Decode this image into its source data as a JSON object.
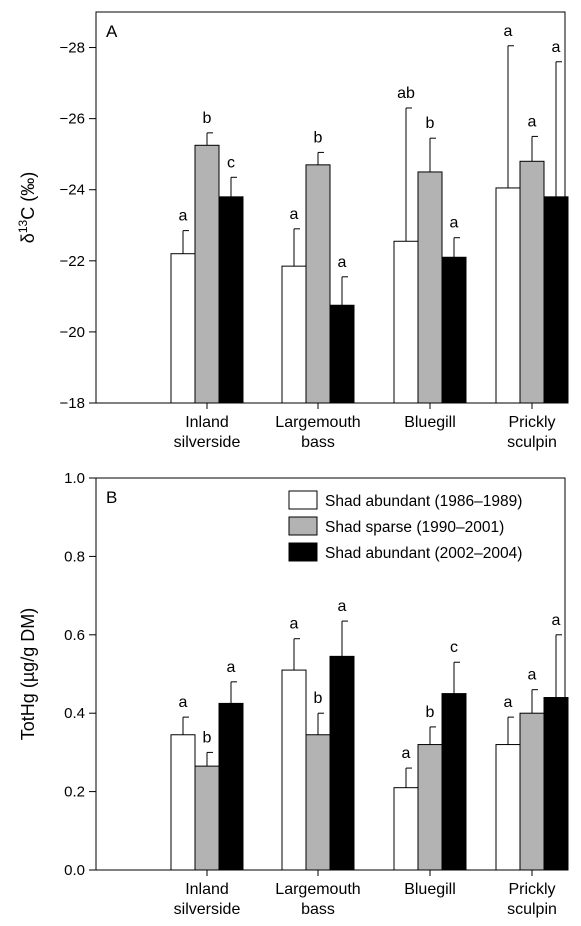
{
  "chart_data": [
    {
      "type": "bar",
      "panel_label": "A",
      "ylabel": "δ13C (‰)",
      "ylabel_parts": {
        "delta": "δ",
        "sup": "13",
        "rest": "C (‰)"
      },
      "ylim": [
        -18,
        -29
      ],
      "yaxis_inverted": true,
      "yticks": [
        -28,
        -26,
        -24,
        -22,
        -20,
        -18
      ],
      "ytick_labels": [
        "−28",
        "−26",
        "−24",
        "−22",
        "−20",
        "−18"
      ],
      "categories": [
        [
          "Inland",
          "silverside"
        ],
        [
          "Largemouth",
          "bass"
        ],
        [
          "Bluegill"
        ],
        [
          "Prickly",
          "sculpin"
        ]
      ],
      "series": [
        {
          "values": [
            -22.2,
            -21.85,
            -22.55,
            -24.05
          ],
          "errors": [
            0.65,
            1.05,
            3.75,
            4.0
          ],
          "letters": [
            "a",
            "a",
            "ab",
            "a"
          ]
        },
        {
          "values": [
            -25.25,
            -24.7,
            -24.5,
            -24.8
          ],
          "errors": [
            0.35,
            0.35,
            0.95,
            0.7
          ],
          "letters": [
            "b",
            "b",
            "b",
            "a"
          ]
        },
        {
          "values": [
            -23.8,
            -20.75,
            -22.1,
            -23.8
          ],
          "errors": [
            0.55,
            0.8,
            0.55,
            3.8
          ],
          "letters": [
            "c",
            "a",
            "a",
            "a"
          ]
        }
      ]
    },
    {
      "type": "bar",
      "panel_label": "B",
      "ylabel": "TotHg (µg/g DM)",
      "ylim": [
        0,
        1.0
      ],
      "yticks": [
        0,
        0.2,
        0.4,
        0.6,
        0.8,
        1.0
      ],
      "ytick_labels": [
        "0.0",
        "0.2",
        "0.4",
        "0.6",
        "0.8",
        "1.0"
      ],
      "categories": [
        [
          "Inland",
          "silverside"
        ],
        [
          "Largemouth",
          "bass"
        ],
        [
          "Bluegill"
        ],
        [
          "Prickly",
          "sculpin"
        ]
      ],
      "legend_position": "top-right",
      "series": [
        {
          "name": "Shad abundant (1986–1989)",
          "values": [
            0.345,
            0.51,
            0.21,
            0.32
          ],
          "errors": [
            0.045,
            0.08,
            0.05,
            0.07
          ],
          "letters": [
            "a",
            "a",
            "a",
            "a"
          ]
        },
        {
          "name": "Shad sparse (1990–2001)",
          "values": [
            0.265,
            0.345,
            0.32,
            0.4
          ],
          "errors": [
            0.035,
            0.055,
            0.045,
            0.06
          ],
          "letters": [
            "b",
            "b",
            "b",
            "a"
          ]
        },
        {
          "name": "Shad abundant (2002–2004)",
          "values": [
            0.425,
            0.545,
            0.45,
            0.44
          ],
          "errors": [
            0.055,
            0.09,
            0.08,
            0.16
          ],
          "letters": [
            "a",
            "a",
            "c",
            "a"
          ]
        }
      ]
    }
  ],
  "colors": {
    "series": [
      "#ffffff",
      "#b3b3b3",
      "#000000"
    ],
    "stroke": "#000000"
  }
}
